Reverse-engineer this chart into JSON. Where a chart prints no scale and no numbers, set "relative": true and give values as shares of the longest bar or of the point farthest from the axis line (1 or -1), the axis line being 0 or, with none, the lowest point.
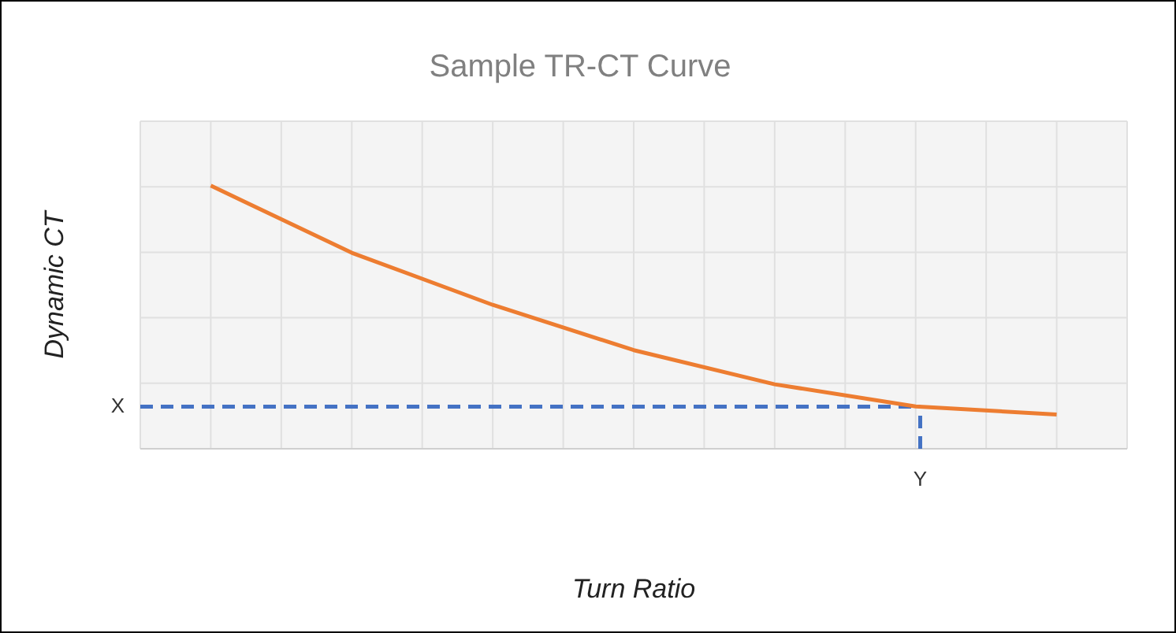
{
  "chart_data": {
    "type": "line",
    "title": "Sample TR-CT Curve",
    "xlabel": "Turn Ratio",
    "ylabel": "Dynamic CT",
    "relative": true,
    "categories": [
      null,
      null,
      null,
      null,
      null,
      null,
      null
    ],
    "series": [
      {
        "color": "#ed7d31",
        "values": [
          1,
          0.745,
          0.547,
          0.375,
          0.245,
          0.161,
          0.13
        ]
      }
    ],
    "ref_lines": [
      {
        "axis": "y",
        "value": 0.16,
        "label": "X",
        "color": "#4472c4",
        "line_style": "dashed"
      }
    ],
    "annotations": [
      "Y"
    ],
    "grid": true,
    "legend": false,
    "marker": "none",
    "line_style": "solid"
  }
}
